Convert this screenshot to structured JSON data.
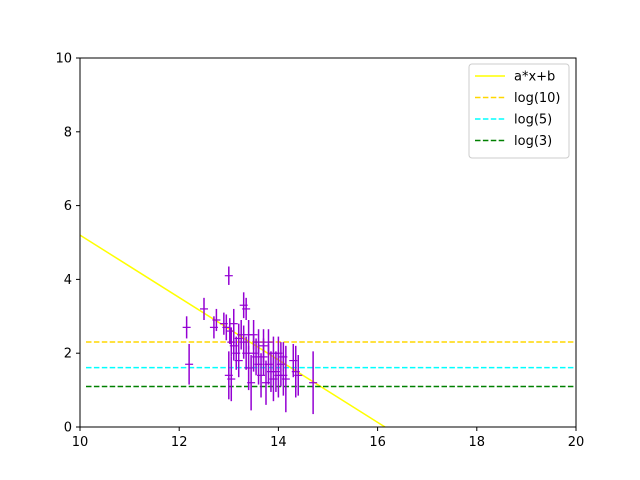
{
  "chart_data": {
    "type": "scatter",
    "title": "",
    "xlabel": "",
    "ylabel": "",
    "xlim": [
      10,
      20
    ],
    "ylim": [
      0,
      10
    ],
    "xticks": [
      10,
      12,
      14,
      16,
      18,
      20
    ],
    "yticks": [
      0,
      2,
      4,
      6,
      8,
      10
    ],
    "xtick_labels": [
      "10",
      "12",
      "14",
      "16",
      "18",
      "20"
    ],
    "ytick_labels": [
      "0",
      "2",
      "4",
      "6",
      "8",
      "10"
    ],
    "grid": false,
    "legend_position": "top-right",
    "points": {
      "color": "#9400D3",
      "x": [
        12.15,
        12.2,
        12.5,
        12.7,
        12.75,
        12.9,
        12.95,
        13.0,
        13.0,
        13.02,
        13.05,
        13.05,
        13.1,
        13.1,
        13.15,
        13.2,
        13.2,
        13.25,
        13.3,
        13.3,
        13.35,
        13.35,
        13.4,
        13.4,
        13.45,
        13.5,
        13.5,
        13.55,
        13.6,
        13.6,
        13.65,
        13.7,
        13.7,
        13.75,
        13.8,
        13.8,
        13.85,
        13.9,
        13.9,
        13.95,
        14.0,
        14.0,
        14.05,
        14.1,
        14.1,
        14.15,
        14.3,
        14.35,
        14.4,
        14.7
      ],
      "y": [
        2.7,
        1.7,
        3.2,
        2.7,
        2.9,
        2.8,
        2.7,
        4.1,
        1.4,
        2.6,
        2.3,
        1.3,
        2.8,
        2.2,
        2.0,
        2.4,
        1.8,
        2.5,
        3.3,
        2.3,
        2.0,
        3.2,
        2.5,
        1.6,
        1.2,
        2.5,
        2.0,
        1.9,
        2.3,
        1.7,
        1.4,
        2.2,
        1.9,
        1.2,
        1.7,
        2.3,
        1.5,
        1.3,
        2.0,
        1.5,
        1.4,
        2.0,
        1.7,
        1.9,
        1.4,
        1.3,
        1.8,
        1.5,
        1.4,
        1.2
      ],
      "yerr": [
        0.3,
        0.55,
        0.3,
        0.3,
        0.3,
        0.3,
        0.35,
        0.25,
        0.65,
        0.35,
        0.4,
        0.6,
        0.4,
        0.4,
        0.45,
        0.4,
        0.45,
        0.4,
        0.35,
        0.45,
        0.45,
        0.3,
        0.4,
        0.6,
        0.75,
        0.4,
        0.5,
        0.5,
        0.35,
        0.55,
        0.6,
        0.45,
        0.5,
        0.6,
        0.55,
        0.35,
        0.55,
        0.6,
        0.45,
        0.55,
        0.6,
        0.45,
        0.6,
        0.4,
        0.55,
        0.9,
        0.45,
        0.7,
        0.55,
        0.85
      ]
    },
    "series": [
      {
        "name": "a*x+b",
        "kind": "line",
        "style": "solid",
        "color": "#FFFF00",
        "x": [
          10,
          16.15
        ],
        "y": [
          5.2,
          0
        ]
      },
      {
        "name": "log(10)",
        "kind": "hline",
        "style": "dashed",
        "color": "#FFD700",
        "y": 2.302585
      },
      {
        "name": "log(5)",
        "kind": "hline",
        "style": "dashed",
        "color": "#00FFFF",
        "y": 1.609438
      },
      {
        "name": "log(3)",
        "kind": "hline",
        "style": "dashed",
        "color": "#008000",
        "y": 1.098612
      }
    ]
  }
}
